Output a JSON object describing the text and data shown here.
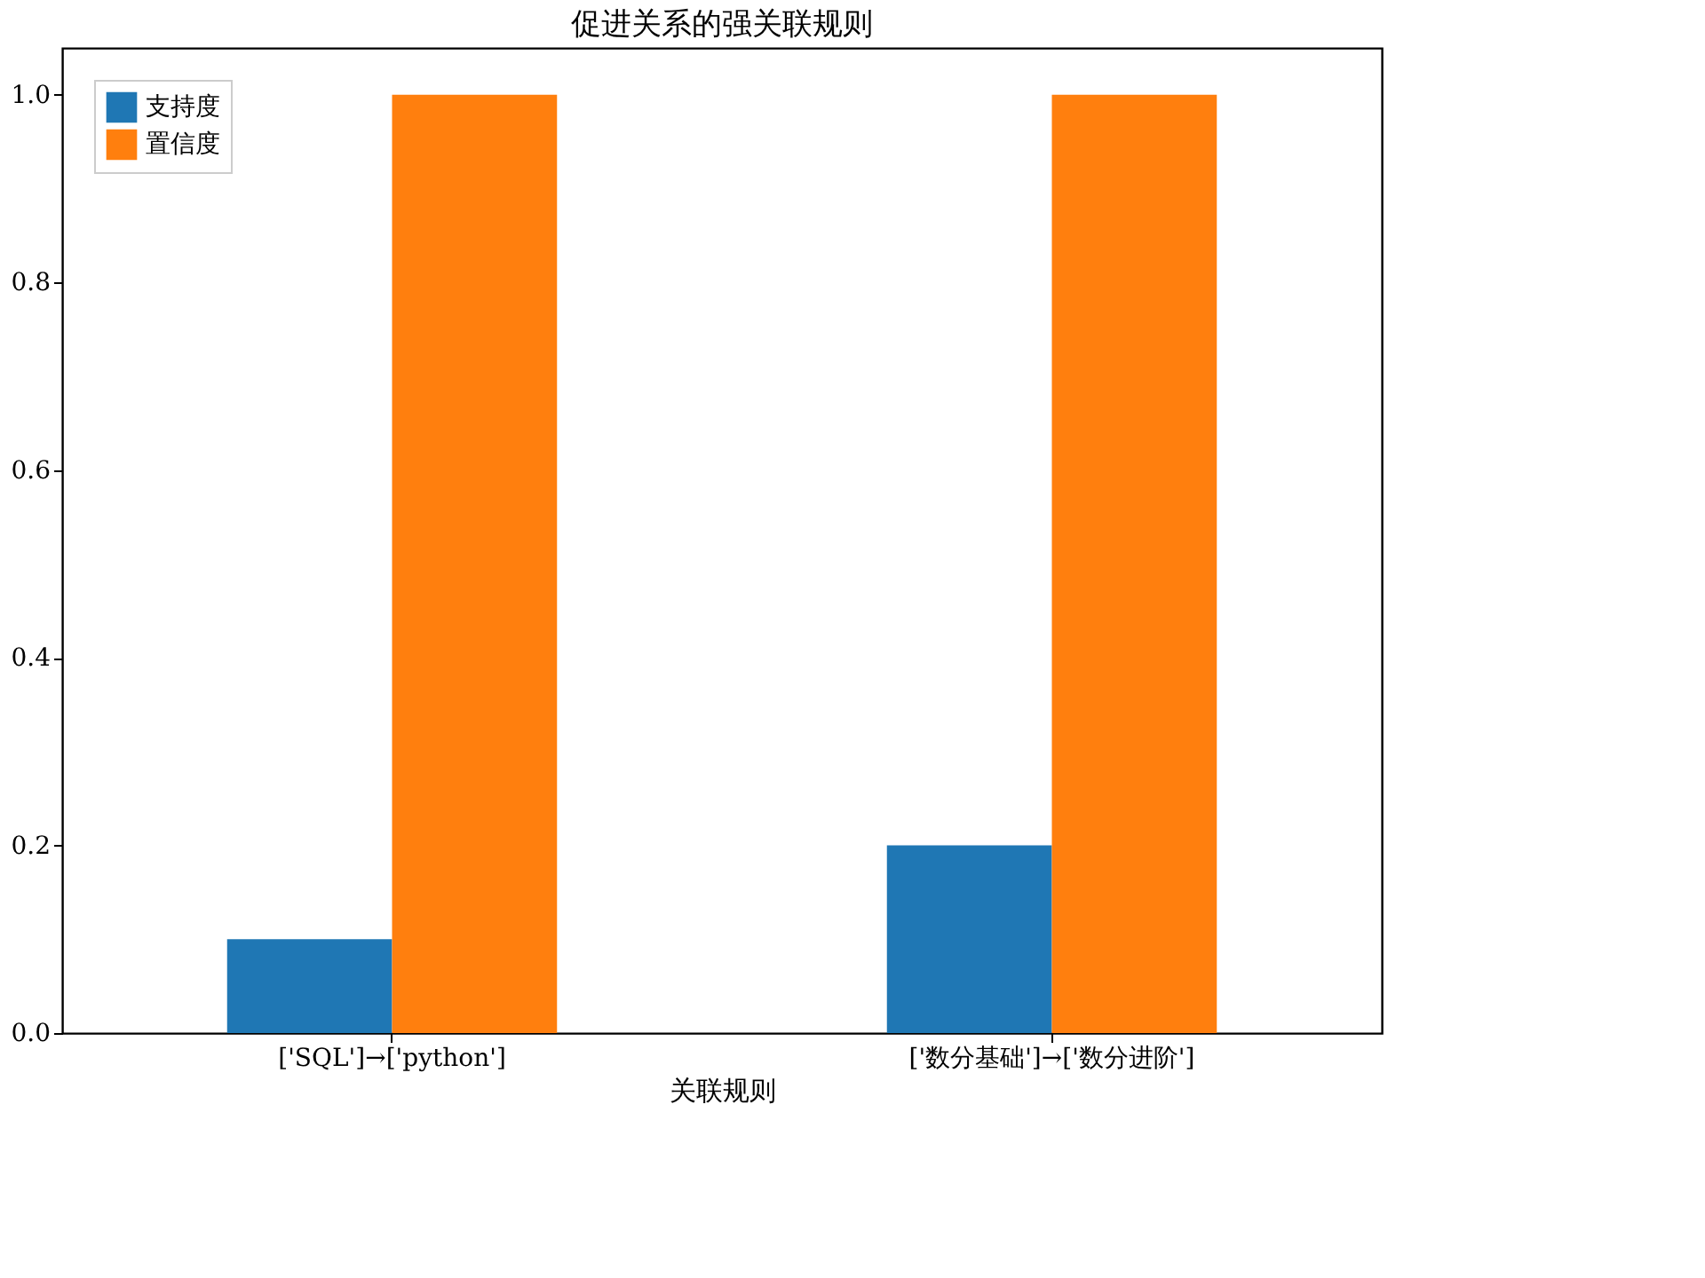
{
  "chart_data": {
    "type": "bar",
    "title": "促进关系的强关联规则",
    "xlabel": "关联规则",
    "categories": [
      "['SQL']→['python']",
      "['数分基础']→['数分进阶']"
    ],
    "series": [
      {
        "name": "支持度",
        "color": "#1f77b4",
        "values": [
          0.1,
          0.2
        ]
      },
      {
        "name": "置信度",
        "color": "#ff7f0e",
        "values": [
          1.0,
          1.0
        ]
      }
    ],
    "ylim": [
      0,
      1.05
    ],
    "yticks": [
      {
        "value": 0,
        "label": "0.0"
      },
      {
        "value": 0.2,
        "label": "0.2"
      },
      {
        "value": 0.4,
        "label": "0.4"
      },
      {
        "value": 0.6,
        "label": "0.6"
      },
      {
        "value": 0.8,
        "label": "0.8"
      },
      {
        "value": 1.0,
        "label": "1.0"
      }
    ],
    "grid": false,
    "legend": "top left"
  }
}
